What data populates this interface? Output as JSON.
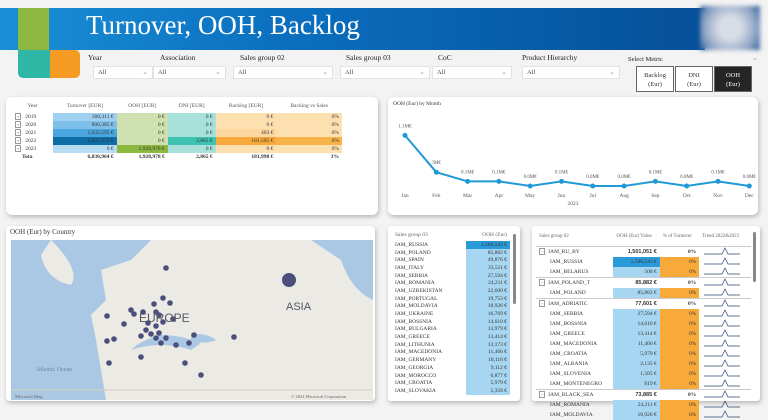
{
  "header": {
    "title": "Turnover, OOH, Backlog",
    "colors": {
      "banner": "#0b6fc0",
      "green": "#8db840",
      "teal": "#2fb7a5",
      "orange": "#f59a23"
    }
  },
  "filters": [
    {
      "label": "Year",
      "value": "All"
    },
    {
      "label": "Association",
      "value": "All"
    },
    {
      "label": "Sales group 02",
      "value": "All"
    },
    {
      "label": "Sales group 03",
      "value": "All"
    },
    {
      "label": "CoC",
      "value": "All"
    },
    {
      "label": "Product Hierarchy",
      "value": "All"
    }
  ],
  "metric": {
    "label": "Select Metric",
    "options": [
      {
        "l1": "Backlog",
        "l2": "(Eur)"
      },
      {
        "l1": "DNI",
        "l2": "(Eur)"
      },
      {
        "l1": "OOH",
        "l2": "(Eur)"
      }
    ],
    "selected": 2
  },
  "summary": {
    "headers": [
      "Year",
      "Turnover [EUR]",
      "OOH [EUR]",
      "DNI [EUR]",
      "Backlog [EUR]",
      "Backlog vs Sales"
    ],
    "rows": [
      [
        "2019",
        "300,311 €",
        "0 €",
        "0 €",
        "0 €",
        "0%"
      ],
      [
        "2020",
        "800,385 €",
        "0 €",
        "0 €",
        "0 €",
        "0%"
      ],
      [
        "2021",
        "1,632,595 €",
        "0 €",
        "0 €",
        "403 €",
        "0%"
      ],
      [
        "2022",
        "4,097,673 €",
        "0 €",
        "2,865 €",
        "181,595 €",
        "0%"
      ],
      [
        "2023",
        "0 €",
        "1,928,978 €",
        "0 €",
        "0 €",
        "0%"
      ]
    ],
    "total": [
      "Tota",
      "6,830,964 €",
      "1,928,978 €",
      "2,865 €",
      "181,998 €",
      "3%"
    ]
  },
  "chart_data": {
    "type": "line",
    "title": "OOH (Eur) by Month",
    "xlabel": "2023",
    "categories": [
      "Jan",
      "Feb",
      "Mar",
      "Apr",
      "May",
      "Jun",
      "Jul",
      "Aug",
      "Sep",
      "Oct",
      "Nov",
      "Dec"
    ],
    "values": [
      1.1,
      0.3,
      0.1,
      0.1,
      0.0,
      0.1,
      0.0,
      0.0,
      0.1,
      0.0,
      0.1,
      0.0
    ],
    "labels": [
      "1.1M€",
      "?M€",
      "0.1M€",
      "0.1M€",
      "0.0M€",
      "0.1M€",
      "0.0M€",
      "0.0M€",
      "0.1M€",
      "0.0M€",
      "0.1M€",
      "0.0M€"
    ],
    "unit": "M€",
    "color": "#1f9ad6"
  },
  "map": {
    "title": "OOH (Eur) by Country",
    "labels": [
      "EUROPE",
      "ASIA",
      "Atlantic Ocean"
    ],
    "credit_left": "Microsoft Bing",
    "credit_right": "© 2024 Microsoft Corporation"
  },
  "sg03": {
    "headers": [
      "Sales group 03",
      "OOH (Eur)"
    ],
    "rows": [
      [
        "IAM_RUSSIA",
        "1,500,543 €"
      ],
      [
        "IAM_POLAND",
        "85,882 €"
      ],
      [
        "IAM_SPAIN",
        "49,876 €"
      ],
      [
        "IAM_ITALY",
        "33,511 €"
      ],
      [
        "IAM_SERBIA",
        "27,594 €"
      ],
      [
        "IAM_ROMANIA",
        "24,211 €"
      ],
      [
        "IAM_UZBEKISTAN",
        "22,600 €"
      ],
      [
        "IAM_PORTUGAL",
        "19,753 €"
      ],
      [
        "IAM_MOLDAVIA",
        "18,926 €"
      ],
      [
        "IAM_UKRAINE",
        "16,769 €"
      ],
      [
        "IAM_BOSSNIA",
        "14,610 €"
      ],
      [
        "IAM_BULGARIA",
        "13,979 €"
      ],
      [
        "IAM_GREECE",
        "13,414 €"
      ],
      [
        "IAM_LITHUNIA",
        "13,173 €"
      ],
      [
        "IAM_MACEDONIA",
        "11,466 €"
      ],
      [
        "IAM_GERMANY",
        "10,118 €"
      ],
      [
        "IAM_GEORGIA",
        "9,112 €"
      ],
      [
        "IAM_MOROCCO",
        "6,877 €"
      ],
      [
        "IAM_CROATIA",
        "5,979 €"
      ],
      [
        "IAM_SLOVAKIA",
        "5,358 €"
      ]
    ]
  },
  "sg02": {
    "headers": [
      "Sales group 02",
      "OOH (Eur) Value",
      "% of Turnover",
      "Trend 2022&2023"
    ],
    "rows": [
      {
        "name": "IAM_RU_BY",
        "value": "1,501,051 €",
        "pct": "0%",
        "group": true
      },
      {
        "name": "IAM_RUSSIA",
        "value": "1,500,543 €",
        "pct": "0%"
      },
      {
        "name": "IAM_BELARUS",
        "value": "508 €",
        "pct": "0%"
      },
      {
        "name": "IAM_POLAND_T",
        "value": "85,882 €",
        "pct": "0%",
        "group": true
      },
      {
        "name": "IAM_POLAND",
        "value": "85,882 €",
        "pct": "0%"
      },
      {
        "name": "IAM_ADRIATIC",
        "value": "77,601 €",
        "pct": "0%",
        "group": true
      },
      {
        "name": "IAM_SERBIA",
        "value": "27,594 €",
        "pct": "0%"
      },
      {
        "name": "IAM_BOSSNIA",
        "value": "14,610 €",
        "pct": "0%"
      },
      {
        "name": "IAM_GREECE",
        "value": "13,414 €",
        "pct": "0%"
      },
      {
        "name": "IAM_MACEDONIA",
        "value": "11,466 €",
        "pct": "0%"
      },
      {
        "name": "IAM_CROATIA",
        "value": "5,979 €",
        "pct": "0%"
      },
      {
        "name": "IAM_ALBANIA",
        "value": "2,135 €",
        "pct": "0%"
      },
      {
        "name": "IAM_SLOVENIA",
        "value": "1,585 €",
        "pct": "0%"
      },
      {
        "name": "IAM_MONTENEGRO",
        "value": "819 €",
        "pct": "0%"
      },
      {
        "name": "IAM_BLACK_SEA",
        "value": "73,885 €",
        "pct": "0%",
        "group": true
      },
      {
        "name": "IAM_ROMANIA",
        "value": "24,211 €",
        "pct": "0%"
      },
      {
        "name": "IAM_MOLDAVIA",
        "value": "18,926 €",
        "pct": "0%"
      }
    ]
  }
}
